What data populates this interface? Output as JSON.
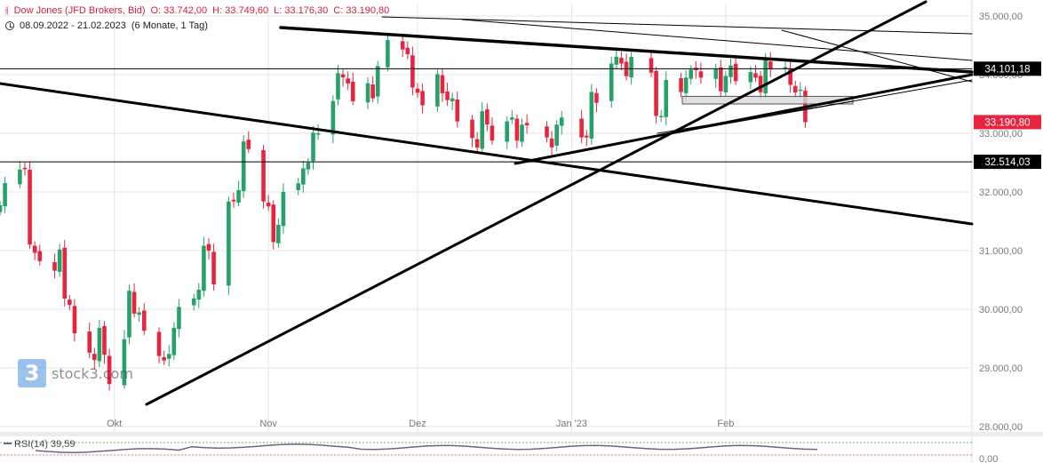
{
  "header": {
    "icon": "candlestick-icon",
    "title": "Dow Jones (JFD Brokers, Bid)",
    "open": "O: 33.742,00",
    "high": "H: 33.749,60",
    "low": "L: 33.176,30",
    "close": "C: 33.190,80",
    "period": "08.09.2022 - 21.02.2023",
    "interval": "(6 Monate, 1 Tag)"
  },
  "logo": {
    "mark": "3",
    "text": "stock3.com"
  },
  "rsi": {
    "label": "RSI(14)",
    "value": "39,59",
    "axis_label": "0,00"
  },
  "price_tags": [
    {
      "label": "34.101,18",
      "value": 34101.18,
      "bg": "#000000"
    },
    {
      "label": "33.190,80",
      "value": 33190.8,
      "bg": "#e8243f"
    },
    {
      "label": "32.514,03",
      "value": 32514.03,
      "bg": "#000000"
    }
  ],
  "colors": {
    "up": "#26a16a",
    "down": "#e8243f",
    "grid": "#e6e6e6",
    "axis_text": "#7a7a7a",
    "rsi_line": "#6c6486"
  },
  "chart_data": {
    "type": "candlestick",
    "title": "Dow Jones (JFD Brokers, Bid)",
    "ylim": [
      28000,
      35200
    ],
    "y_ticks": [
      {
        "label": "35.000,00",
        "value": 35000
      },
      {
        "label": "34.000,00",
        "value": 34000
      },
      {
        "label": "33.000,00",
        "value": 33000
      },
      {
        "label": "32.000,00",
        "value": 32000
      },
      {
        "label": "31.000,00",
        "value": 31000
      },
      {
        "label": "30.000,00",
        "value": 30000
      },
      {
        "label": "29.000,00",
        "value": 29000
      },
      {
        "label": "28.000,00",
        "value": 28000
      }
    ],
    "x_ticks": [
      {
        "label": "Okt",
        "date": "2022-10-01"
      },
      {
        "label": "Nov",
        "date": "2022-11-01"
      },
      {
        "label": "Dez",
        "date": "2022-12-01"
      },
      {
        "label": "Jan '23",
        "date": "2023-01-01"
      },
      {
        "label": "Feb",
        "date": "2023-02-01"
      }
    ],
    "x_range": [
      "2022-09-08",
      "2023-03-26"
    ],
    "grid": true,
    "closes": [
      31775,
      32151,
      32381,
      32398,
      31104,
      30961,
      30822,
      30657,
      31019,
      30183,
      30076,
      29590,
      29260,
      29135,
      29683,
      29225,
      28725,
      29490,
      30316,
      29926,
      29947,
      29634,
      29202,
      29127,
      29239,
      29683,
      30039,
      30185,
      30333,
      31082,
      31000,
      30423,
      31837,
      31839,
      32033,
      32861,
      32732,
      31839,
      31755,
      31145,
      31440,
      32001,
      32147,
      32403,
      32497,
      33010,
      33000,
      33549,
      34026,
      33954,
      33849,
      33547,
      33853,
      33597,
      34147,
      34590,
      34429,
      34348,
      33781,
      33691,
      33477,
      34009,
      33682,
      33566,
      33596,
      33202,
      32920,
      32757,
      33376,
      33151,
      32876,
      33203,
      33270,
      32875,
      33147,
      33136,
      32931,
      32760,
      33148,
      33269,
      32930,
      32930,
      33706,
      33520,
      34190,
      34306,
      34189,
      33973,
      34302,
      34034,
      33297,
      33296,
      33910,
      33704,
      33950,
      34087,
      34075,
      33949,
      34092,
      33718,
      33978,
      34156,
      33890,
      34044,
      33949,
      33699,
      34246,
      34089,
      34128,
      33826,
      33696,
      33745,
      33190
    ],
    "overlays": {
      "horizontal_levels": [
        34101.18,
        32514.03
      ],
      "zone": {
        "from": 33500,
        "to": 33630
      },
      "trendlines": 9
    },
    "rsi_value": 39.59
  }
}
